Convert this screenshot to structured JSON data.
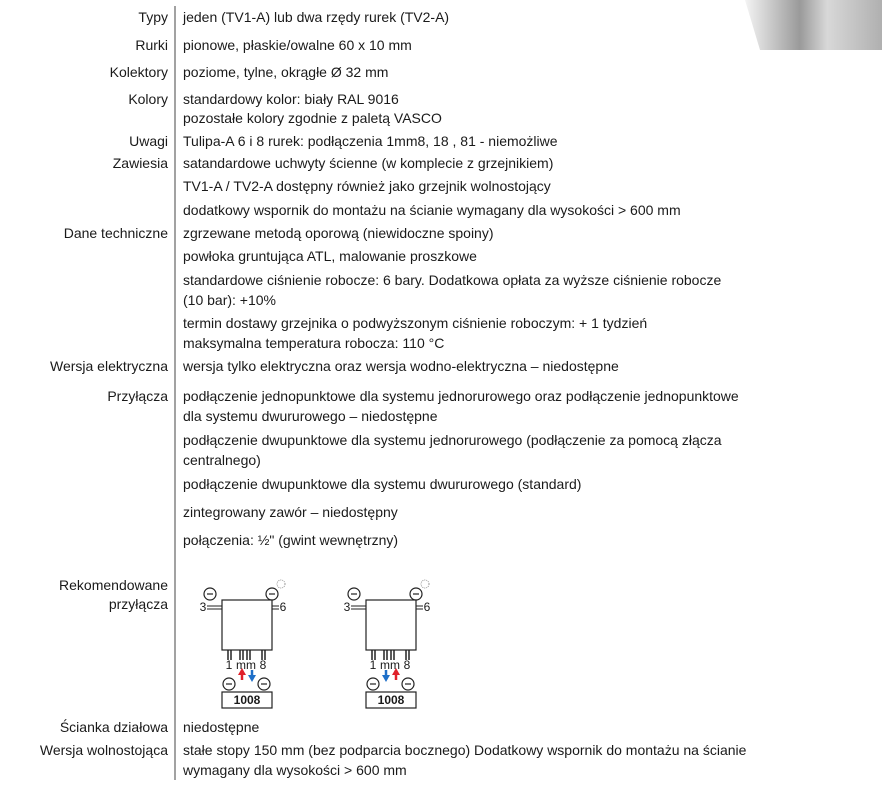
{
  "rows": [
    {
      "label": [
        "Typy"
      ],
      "lines": [
        "jeden (TV1-A) lub dwa rzędy rurek (TV2-A)"
      ]
    },
    {
      "label": [
        "Rurki"
      ],
      "lines": [
        "pionowe, płaskie/owalne 60 x 10 mm"
      ]
    },
    {
      "label": [
        "Kolektory"
      ],
      "lines": [
        "poziome, tylne, okrągłe Ø 32 mm"
      ]
    },
    {
      "label": [
        "Kolory"
      ],
      "lines": [
        "standardowy kolor: biały RAL 9016",
        "pozostałe kolory zgodnie z paletą VASCO"
      ]
    },
    {
      "label": [
        "Uwagi"
      ],
      "lines": [
        "Tulipa-A 6 i 8 rurek: podłączenia 1mm8, 18 , 81 - niemożliwe"
      ]
    },
    {
      "label": [
        "Zawiesia"
      ],
      "lines": [
        "satandardowe uchwyty ścienne (w komplecie z grzejnikiem)",
        "TV1-A / TV2-A dostępny również jako grzejnik wolnostojący",
        "dodatkowy wspornik do montażu na ścianie wymagany dla wysokości > 600 mm"
      ]
    },
    {
      "label": [
        "Dane techniczne"
      ],
      "lines": [
        "zgrzewane metodą oporową (niewidoczne spoiny)",
        "powłoka gruntująca ATL, malowanie proszkowe",
        "standardowe ciśnienie robocze: 6 bary. Dodatkowa opłata za wyższe ciśnienie robocze",
        "(10 bar): +10%",
        "termin dostawy grzejnika o podwyższonym ciśnienie roboczym: + 1 tydzień",
        "maksymalna temperatura robocza: 110 °C"
      ]
    },
    {
      "label": [
        "Wersja elektryczna"
      ],
      "lines": [
        "wersja tylko elektryczna oraz wersja wodno-elektryczna – niedostępne"
      ]
    },
    {
      "label": [
        "Przyłącza"
      ],
      "lines": [
        "podłączenie jednopunktowe dla systemu jednorurowego oraz podłączenie jednopunktowe",
        "dla systemu dwururowego – niedostępne",
        "podłączenie dwupunktowe dla systemu jednorurowego (podłączenie za pomocą złącza",
        "centralnego)",
        "podłączenie dwupunktowe dla systemu dwururowego (standard)",
        "zintegrowany zawór – niedostępny",
        "połączenia: ½\" (gwint wewnętrzny)"
      ]
    },
    {
      "label": [
        "Rekomendowane",
        "przyłącza"
      ],
      "lines": []
    },
    {
      "label": [
        "Ścianka działowa"
      ],
      "lines": [
        "niedostępne"
      ]
    },
    {
      "label": [
        "Wersja wolnostojąca"
      ],
      "lines": [
        "stałe stopy 150 mm (bez podparcia bocznego) Dodatkowy wspornik do montażu na ścianie",
        "wymagany dla wysokości > 600 mm"
      ]
    }
  ],
  "diagrams": [
    {
      "left": "3",
      "right": "6",
      "bottom": [
        "1",
        "mm",
        "8"
      ],
      "code": "1008"
    },
    {
      "left": "3",
      "right": "6",
      "bottom": [
        "1",
        "mm",
        "8"
      ],
      "code": "1008"
    }
  ]
}
